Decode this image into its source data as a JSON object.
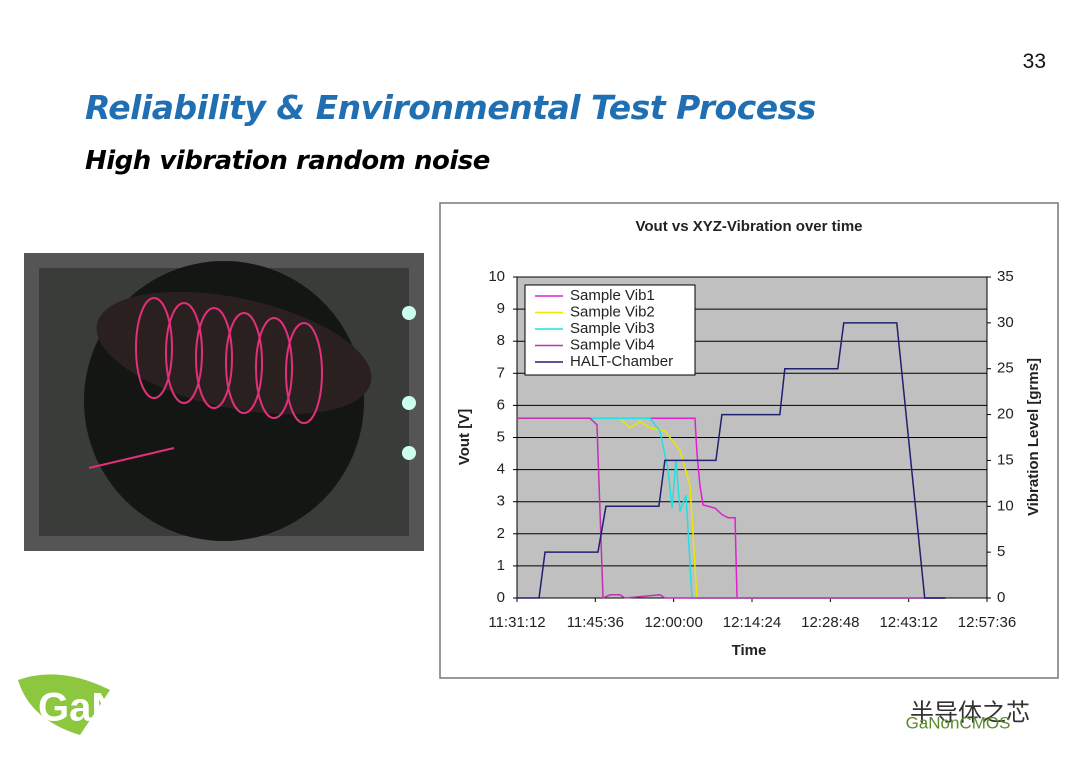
{
  "page_number": "33",
  "slide": {
    "title": "Reliability & Environmental Test Process",
    "subtitle": "High vibration random noise"
  },
  "logo": {
    "text": "GaN"
  },
  "watermark": {
    "brand": "半导体之芯",
    "handle": "GaNonCMOS"
  },
  "chart_data": {
    "type": "line",
    "title": "Vout vs XYZ-Vibration over time",
    "x_label": "Time",
    "y_label": "Vout [V]",
    "y2_label": "Vibration Level [grms]",
    "xlim": [
      "11:31:12",
      "12:57:36"
    ],
    "xticks": [
      "11:31:12",
      "11:45:36",
      "12:00:00",
      "12:14:24",
      "12:28:48",
      "12:43:12",
      "12:57:36"
    ],
    "ylim": [
      0,
      10
    ],
    "yticks": [
      0,
      1,
      2,
      3,
      4,
      5,
      6,
      7,
      8,
      9,
      10
    ],
    "y2lim": [
      0,
      35
    ],
    "y2ticks": [
      0,
      5,
      10,
      15,
      20,
      25,
      30,
      35
    ],
    "grid": true,
    "legend": "upper left",
    "series": [
      {
        "name": "Sample Vib1",
        "color": "#e020d0",
        "x": [
          "11:31:12",
          "12:03:55",
          "12:04:17",
          "12:04:50",
          "12:05:24",
          "12:07:36",
          "12:08:53",
          "12:09:59",
          "12:11:17",
          "12:11:39",
          "12:50:00"
        ],
        "values": [
          5.6,
          5.6,
          4.5,
          3.5,
          2.9,
          2.8,
          2.6,
          2.5,
          2.5,
          0,
          0
        ]
      },
      {
        "name": "Sample Vib2",
        "color": "#e8e800",
        "x": [
          "11:31:12",
          "11:50:08",
          "11:51:58",
          "11:53:49",
          "11:55:39",
          "11:58:24",
          "12:01:10",
          "12:03:00",
          "12:04:17",
          "12:50:00"
        ],
        "values": [
          5.6,
          5.6,
          5.3,
          5.5,
          5.3,
          5.2,
          4.6,
          3.5,
          0,
          0
        ]
      },
      {
        "name": "Sample Vib3",
        "color": "#20e0e0",
        "x": [
          "11:31:12",
          "11:55:39",
          "11:57:29",
          "11:58:58",
          "11:59:42",
          "12:00:26",
          "12:01:10",
          "12:02:16",
          "12:03:22",
          "12:50:00"
        ],
        "values": [
          5.6,
          5.6,
          5.2,
          4.0,
          2.8,
          4.3,
          2.7,
          3.2,
          0,
          0
        ]
      },
      {
        "name": "Sample Vib4",
        "color": "#c030b0",
        "x": [
          "11:31:12",
          "11:44:37",
          "11:45:54",
          "11:47:01",
          "11:48:18",
          "11:50:08",
          "11:51:03",
          "11:57:29",
          "11:58:24",
          "12:50:00"
        ],
        "values": [
          5.6,
          5.6,
          5.4,
          0,
          0.1,
          0.1,
          0,
          0.1,
          0,
          0
        ]
      },
      {
        "name": "HALT-Chamber",
        "color": "#202070",
        "axis": "y2",
        "x": [
          "11:31:12",
          "11:35:15",
          "11:36:21",
          "11:46:05",
          "11:47:33",
          "11:57:17",
          "11:58:23",
          "12:07:46",
          "12:08:52",
          "12:19:31",
          "12:20:26",
          "12:30:10",
          "12:31:16",
          "12:41:01",
          "12:46:09",
          "12:50:00"
        ],
        "values": [
          0,
          0,
          5,
          5,
          10,
          10,
          15,
          15,
          20,
          20,
          25,
          25,
          30,
          30,
          0,
          0
        ]
      }
    ]
  }
}
